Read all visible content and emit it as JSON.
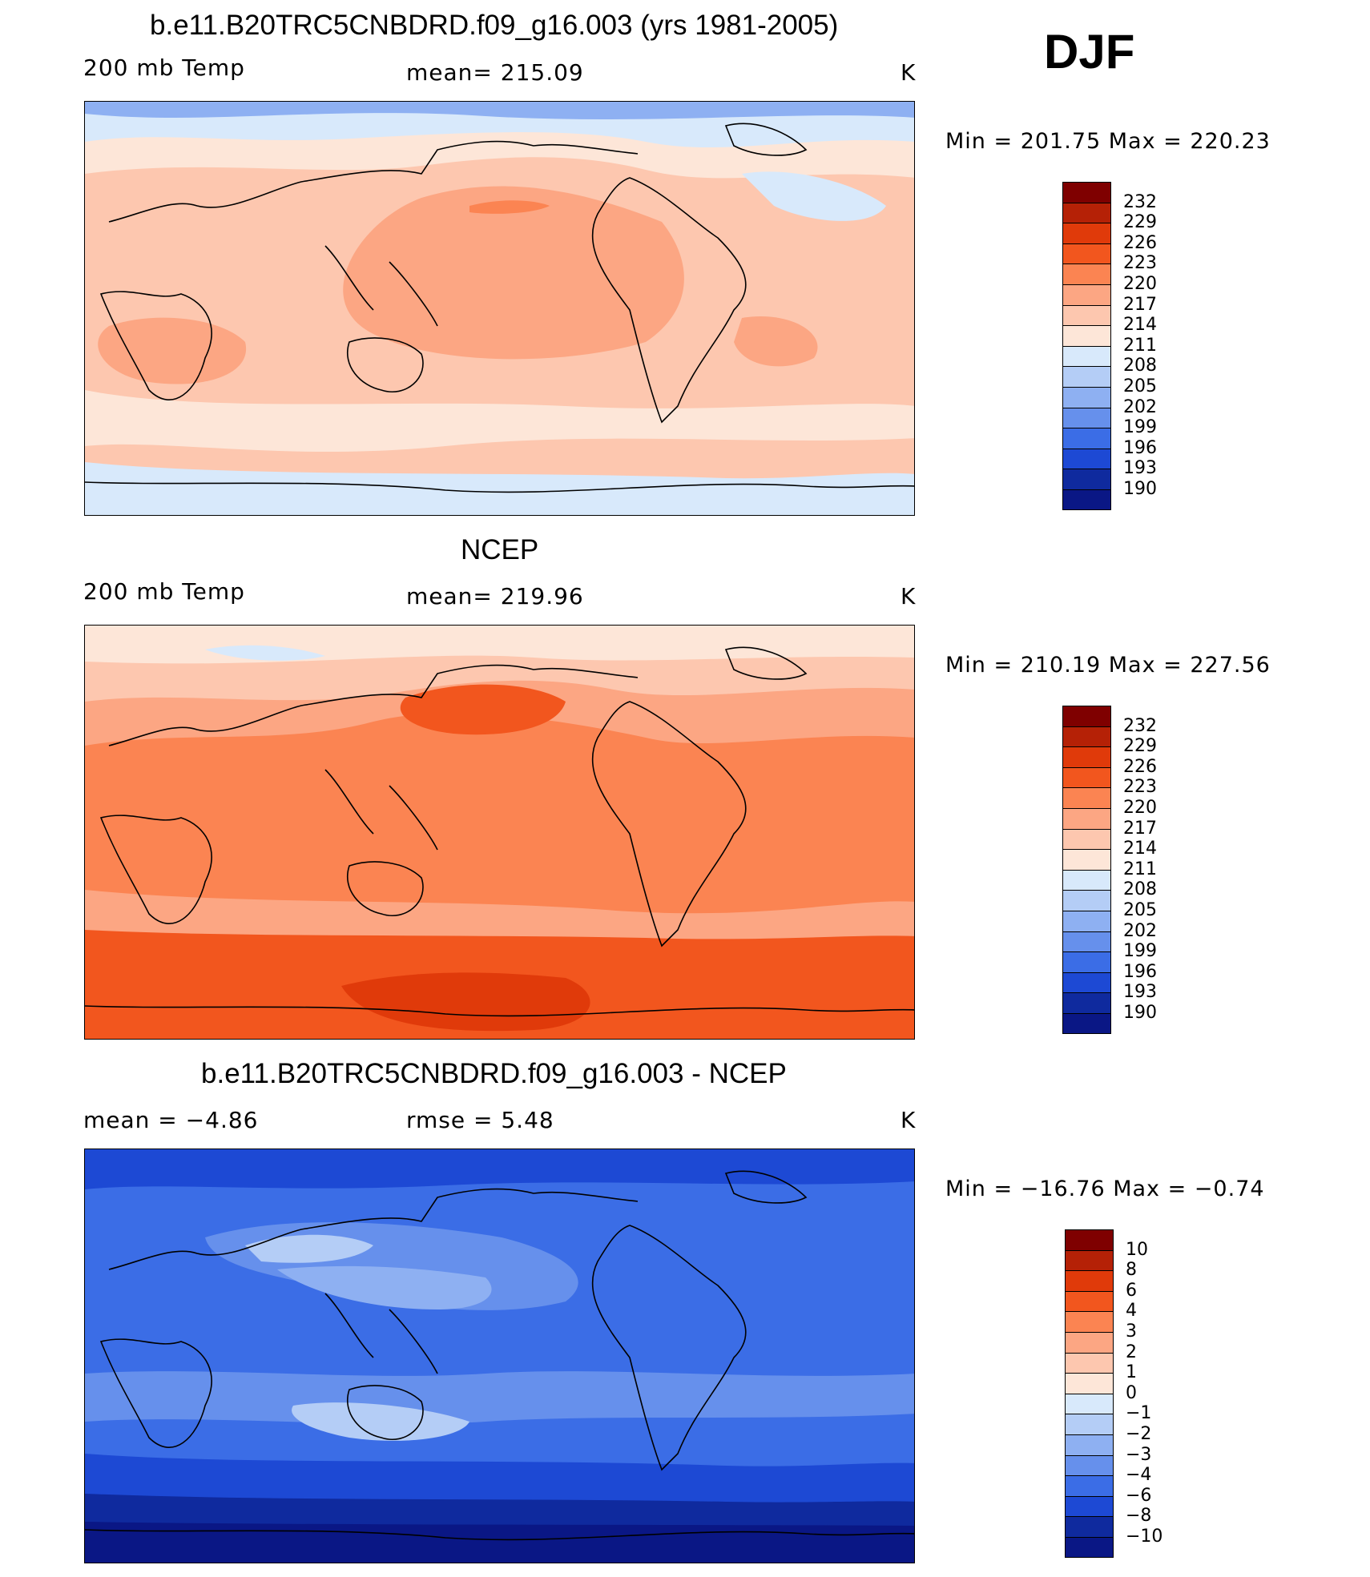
{
  "season": "DJF",
  "panels": [
    {
      "id": "model",
      "title": "b.e11.B20TRC5CNBDRD.f09_g16.003 (yrs 1981-2005)",
      "left_label": "200 mb Temp",
      "center_label": "mean=  215.09",
      "right_label": "K",
      "minmax": "Min  =  201.75  Max  =  220.23",
      "colorbar_levels": [
        "232",
        "229",
        "226",
        "223",
        "220",
        "217",
        "214",
        "211",
        "208",
        "205",
        "202",
        "199",
        "196",
        "193",
        "190"
      ]
    },
    {
      "id": "ncep",
      "title": "NCEP",
      "left_label": "200 mb Temp",
      "center_label": "mean=  219.96",
      "right_label": "K",
      "minmax": "Min  =  210.19  Max  =  227.56",
      "colorbar_levels": [
        "232",
        "229",
        "226",
        "223",
        "220",
        "217",
        "214",
        "211",
        "208",
        "205",
        "202",
        "199",
        "196",
        "193",
        "190"
      ]
    },
    {
      "id": "diff",
      "title": "b.e11.B20TRC5CNBDRD.f09_g16.003 - NCEP",
      "left_label": "mean  =     −4.86",
      "center_label": "rmse  =     5.48",
      "right_label": "K",
      "minmax": "Min  =  −16.76  Max  =    −0.74",
      "colorbar_levels": [
        "10",
        "8",
        "6",
        "4",
        "3",
        "2",
        "1",
        "0",
        "−1",
        "−2",
        "−3",
        "−4",
        "−6",
        "−8",
        "−10"
      ]
    }
  ],
  "palette": [
    "#7f0000",
    "#b52106",
    "#e03a0a",
    "#f2561e",
    "#fb8452",
    "#fca683",
    "#fdc7af",
    "#fde6d8",
    "#d8e9fb",
    "#b4cdf6",
    "#8eb0f2",
    "#6690ec",
    "#3b6de6",
    "#1d49d4",
    "#0f2a9e",
    "#0a1785"
  ],
  "chart_data": [
    {
      "type": "heatmap",
      "title": "b.e11.B20TRC5CNBDRD.f09_g16.003 (yrs 1981-2005)",
      "variable": "200 mb Temp",
      "units": "K",
      "mean": 215.09,
      "min": 201.75,
      "max": 220.23,
      "contour_levels": [
        190,
        193,
        196,
        199,
        202,
        205,
        208,
        211,
        214,
        217,
        220,
        223,
        226,
        229,
        232
      ]
    },
    {
      "type": "heatmap",
      "title": "NCEP",
      "variable": "200 mb Temp",
      "units": "K",
      "mean": 219.96,
      "min": 210.19,
      "max": 227.56,
      "contour_levels": [
        190,
        193,
        196,
        199,
        202,
        205,
        208,
        211,
        214,
        217,
        220,
        223,
        226,
        229,
        232
      ]
    },
    {
      "type": "heatmap",
      "title": "b.e11.B20TRC5CNBDRD.f09_g16.003 - NCEP",
      "units": "K",
      "mean": -4.86,
      "rmse": 5.48,
      "min": -16.76,
      "max": -0.74,
      "contour_levels": [
        -10,
        -8,
        -6,
        -4,
        -3,
        -2,
        -1,
        0,
        1,
        2,
        3,
        4,
        6,
        8,
        10
      ]
    }
  ]
}
